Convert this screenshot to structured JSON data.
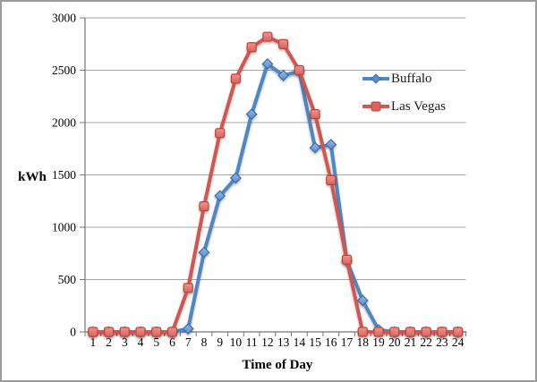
{
  "chart_data": {
    "type": "line",
    "title": "",
    "xlabel": "Time of Day",
    "ylabel": "kWh",
    "x_categories": [
      "1",
      "2",
      "3",
      "4",
      "5",
      "6",
      "7",
      "8",
      "9",
      "10",
      "11",
      "12",
      "13",
      "14",
      "15",
      "16",
      "17",
      "18",
      "19",
      "20",
      "21",
      "22",
      "23",
      "24"
    ],
    "series": [
      {
        "name": "Buffalo",
        "marker": "diamond",
        "line_color": "#4f86c4",
        "marker_fill_light": "#8fb8e8",
        "marker_fill_dark": "#5a8ecb",
        "marker_stroke": "#3a6ca8",
        "values": [
          0,
          0,
          0,
          0,
          0,
          0,
          30,
          760,
          1300,
          1470,
          2080,
          2560,
          2450,
          2490,
          1760,
          1790,
          680,
          300,
          20,
          0,
          0,
          0,
          0,
          0
        ]
      },
      {
        "name": "Las Vegas",
        "marker": "square",
        "line_color": "#d25750",
        "marker_fill_light": "#f0948c",
        "marker_fill_dark": "#d8645c",
        "marker_stroke": "#bb443e",
        "values": [
          0,
          0,
          0,
          0,
          0,
          0,
          420,
          1200,
          1900,
          2420,
          2720,
          2820,
          2750,
          2500,
          2080,
          1450,
          690,
          0,
          0,
          0,
          0,
          0,
          0,
          0
        ]
      }
    ],
    "ylim": [
      0,
      3000
    ],
    "ytick_step": 500,
    "grid": true,
    "gridline_color": "#a6a6a6",
    "axis_color": "#767676",
    "legend_position": "right-middle"
  },
  "legend": {
    "items": [
      {
        "label": "Buffalo"
      },
      {
        "label": "Las Vegas"
      }
    ]
  }
}
